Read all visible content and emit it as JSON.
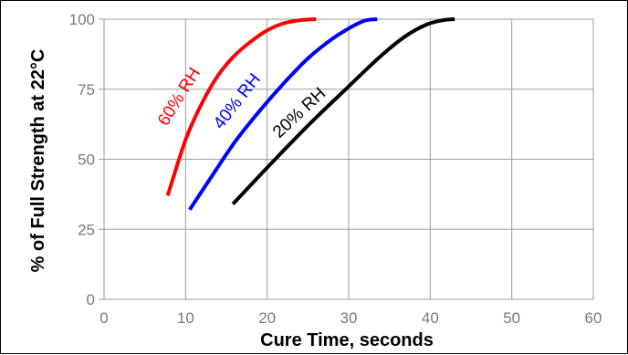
{
  "chart_data": {
    "type": "line",
    "title": "",
    "xlabel": "Cure Time, seconds",
    "ylabel": "% of Full Strength at 22°C",
    "xlim": [
      0,
      60
    ],
    "ylim": [
      0,
      100
    ],
    "xticks": [
      0,
      10,
      20,
      30,
      40,
      50,
      60
    ],
    "yticks": [
      0,
      25,
      50,
      75,
      100
    ],
    "grid": true,
    "legend": "none",
    "series": [
      {
        "name": "60% RH",
        "color": "#ff0000",
        "points": [
          [
            7.8,
            37
          ],
          [
            10,
            57
          ],
          [
            12,
            70
          ],
          [
            14,
            80
          ],
          [
            16,
            87
          ],
          [
            18,
            92
          ],
          [
            20,
            96
          ],
          [
            22,
            98.5
          ],
          [
            24,
            99.6
          ],
          [
            26,
            100
          ]
        ]
      },
      {
        "name": "40% RH",
        "color": "#0000ff",
        "points": [
          [
            10.5,
            32
          ],
          [
            13,
            43
          ],
          [
            16,
            56
          ],
          [
            19,
            67
          ],
          [
            22,
            77
          ],
          [
            25,
            86
          ],
          [
            28,
            93
          ],
          [
            30.5,
            97.5
          ],
          [
            32,
            99.5
          ],
          [
            33.5,
            100
          ]
        ]
      },
      {
        "name": "20% RH",
        "color": "#000000",
        "points": [
          [
            15.8,
            34
          ],
          [
            20,
            47
          ],
          [
            25,
            62
          ],
          [
            30,
            76
          ],
          [
            34,
            87
          ],
          [
            37,
            94
          ],
          [
            39.5,
            98
          ],
          [
            41.5,
            99.6
          ],
          [
            43,
            100
          ]
        ]
      }
    ]
  }
}
